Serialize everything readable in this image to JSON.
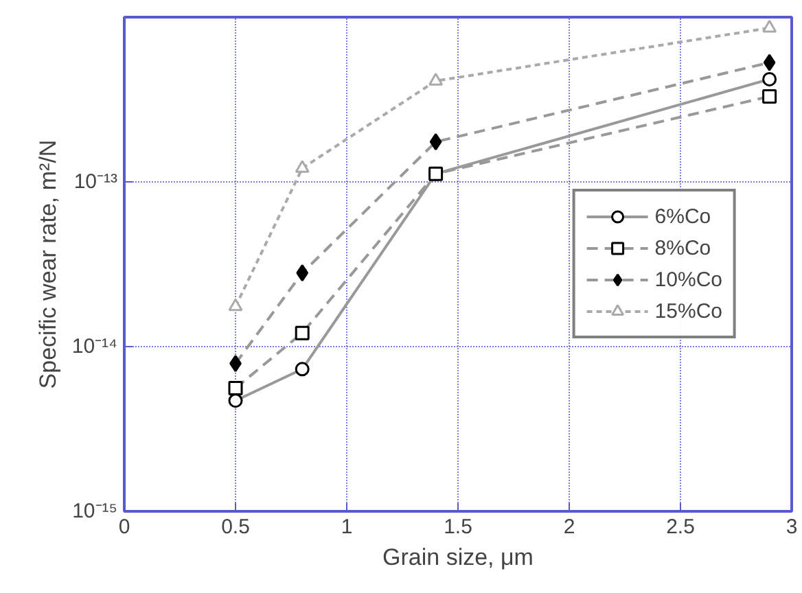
{
  "chart_data": {
    "type": "line",
    "xlabel": "Grain size, μm",
    "ylabel": "Specific wear rate, m²/N",
    "x": [
      0.5,
      0.8,
      1.4,
      2.9
    ],
    "series": [
      {
        "name": "6%Co",
        "color": "#999999",
        "marker": "circle",
        "line_style": "solid",
        "values": [
          4.7e-15,
          7.3e-15,
          1.12e-13,
          4.2e-13
        ]
      },
      {
        "name": "8%Co",
        "color": "#999999",
        "marker": "square",
        "line_style": "dashed",
        "values": [
          5.6e-15,
          1.21e-14,
          1.12e-13,
          3.3e-13
        ]
      },
      {
        "name": "10%Co",
        "color": "#999999",
        "marker": "diamond",
        "line_style": "dashed",
        "values": [
          7.9e-15,
          2.8e-14,
          1.75e-13,
          5.3e-13
        ]
      },
      {
        "name": "15%Co",
        "color": "#aaaaaa",
        "marker": "triangle",
        "line_style": "dotted",
        "values": [
          1.75e-14,
          1.21e-13,
          4.1e-13,
          8.6e-13
        ]
      }
    ],
    "log": "y",
    "xlim": [
      0,
      3
    ],
    "ylim": [
      1e-15,
      1e-12
    ],
    "xticks": [
      0,
      0.5,
      1,
      1.5,
      2,
      2.5,
      3
    ],
    "yticks": [
      {
        "value": 1e-15,
        "label": "10⁻¹⁵"
      },
      {
        "value": 1e-14,
        "label": "10⁻¹⁴"
      },
      {
        "value": 1e-13,
        "label": "10⁻¹³"
      },
      {
        "value": 1e-12,
        "label": null
      }
    ],
    "grid": true,
    "legend": "right"
  }
}
